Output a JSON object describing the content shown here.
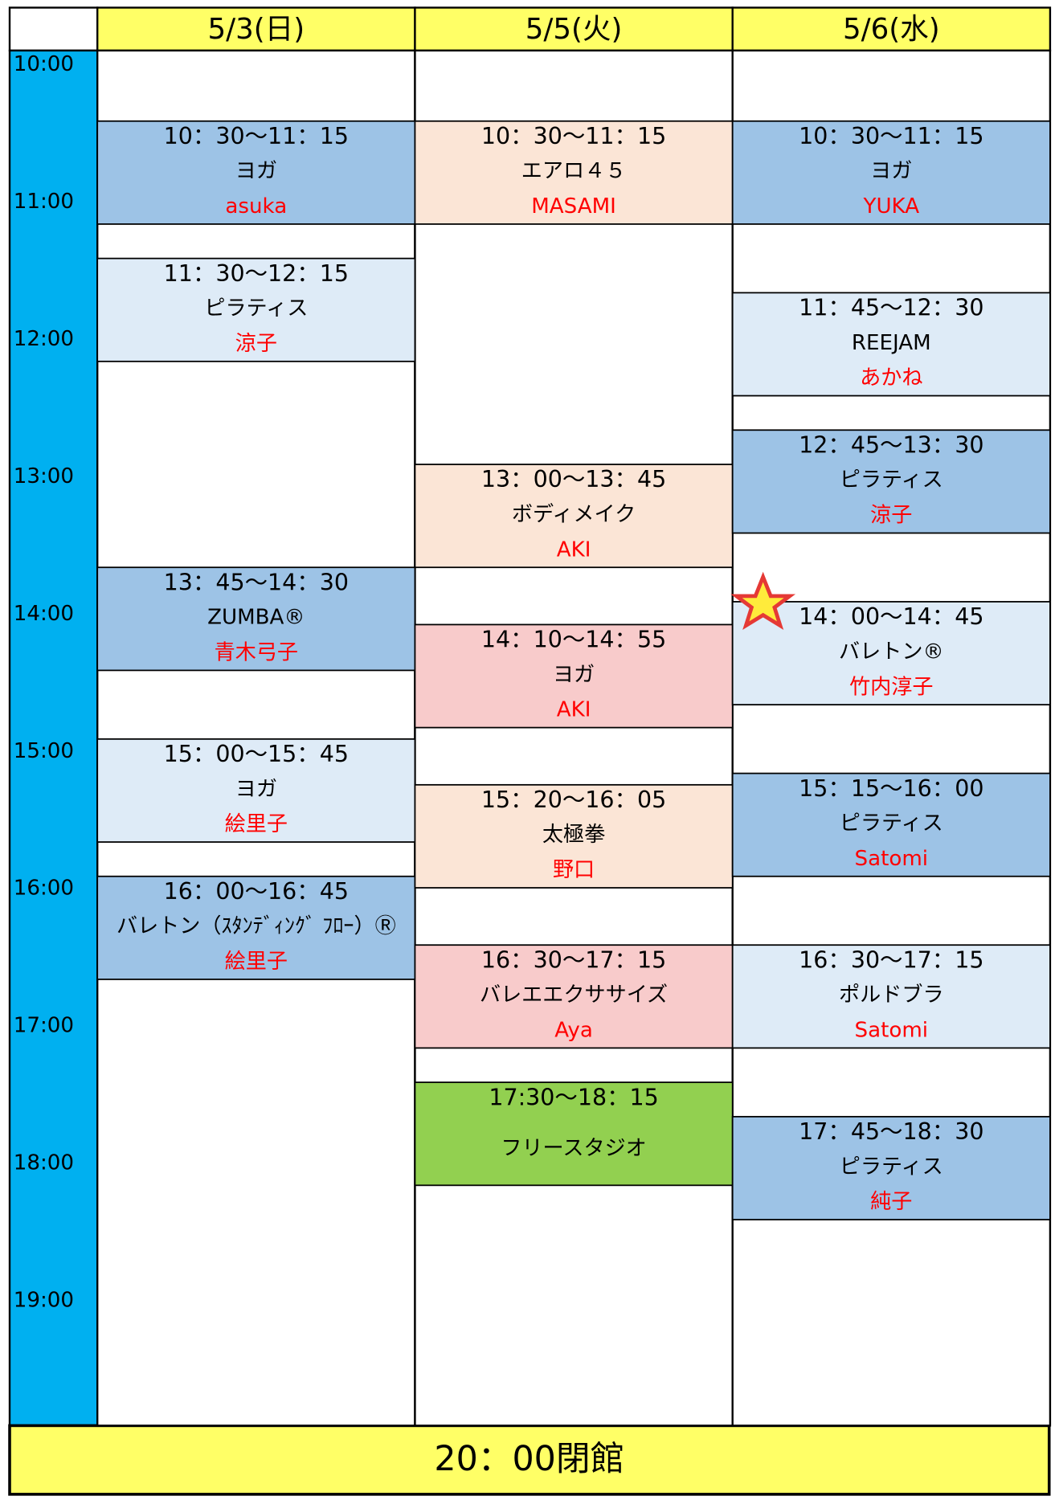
{
  "header": {
    "days": [
      "5/3(日)",
      "5/5(火)",
      "5/6(水)"
    ]
  },
  "times": [
    "10:00",
    "11:00",
    "12:00",
    "13:00",
    "14:00",
    "15:00",
    "16:00",
    "17:00",
    "18:00",
    "19:00"
  ],
  "columns": [
    {
      "sessions": [
        {
          "time": "10：30〜11：15",
          "title": "ヨガ",
          "instructor": "asuka",
          "color": "#9dc3e6"
        },
        {
          "time": "11：30〜12：15",
          "title": "ピラティス",
          "instructor": "涼子",
          "color": "#deebf7"
        },
        {
          "time": "13：45〜14：30",
          "title": "ZUMBA®",
          "instructor": "青木弓子",
          "color": "#9dc3e6"
        },
        {
          "time": "15：00〜15：45",
          "title": "ヨガ",
          "instructor": "絵里子",
          "color": "#deebf7"
        },
        {
          "time": "16：00〜16：45",
          "title": "バレトン（ｽﾀﾝﾃﾞｨﾝｸﾞ ﾌﾛｰ）Ⓡ",
          "instructor": "絵里子",
          "color": "#9dc3e6"
        }
      ]
    },
    {
      "sessions": [
        {
          "time": "10：30〜11：15",
          "title": "エアロ４５",
          "instructor": "MASAMI",
          "color": "#fbe5d6"
        },
        {
          "time": "13：00〜13：45",
          "title": "ボディメイク",
          "instructor": "AKI",
          "color": "#fbe5d6"
        },
        {
          "time": "14：10〜14：55",
          "title": "ヨガ",
          "instructor": "AKI",
          "color": "#f8cbcb"
        },
        {
          "time": "15：20〜16：05",
          "title": "太極拳",
          "instructor": "野口",
          "color": "#fbe5d6"
        },
        {
          "time": "16：30〜17：15",
          "title": "バレエエクササイズ",
          "instructor": "Aya",
          "color": "#f8cbcb"
        },
        {
          "time": "17:30〜18：15",
          "title": "フリースタジオ",
          "color": "#92d050"
        }
      ]
    },
    {
      "sessions": [
        {
          "time": "10：30〜11：15",
          "title": "ヨガ",
          "instructor": "YUKA",
          "color": "#9dc3e6"
        },
        {
          "time": "11：45〜12：30",
          "title": "REEJAM",
          "instructor": "あかね",
          "color": "#deebf7"
        },
        {
          "time": "12：45〜13：30",
          "title": "ピラティス",
          "instructor": "涼子",
          "color": "#9dc3e6"
        },
        {
          "time": "14：00〜14：45",
          "title": "バレトン®",
          "instructor": "竹内淳子",
          "color": "#deebf7"
        },
        {
          "time": "15：15〜16：00",
          "title": "ピラティス",
          "instructor": "Satomi",
          "color": "#9dc3e6"
        },
        {
          "time": "16：30〜17：15",
          "title": "ポルドブラ",
          "instructor": "Satomi",
          "color": "#deebf7"
        },
        {
          "time": "17：45〜18：30",
          "title": "ピラティス",
          "instructor": "純子",
          "color": "#9dc3e6"
        }
      ]
    }
  ],
  "footer": {
    "text": "20：00閉館"
  }
}
